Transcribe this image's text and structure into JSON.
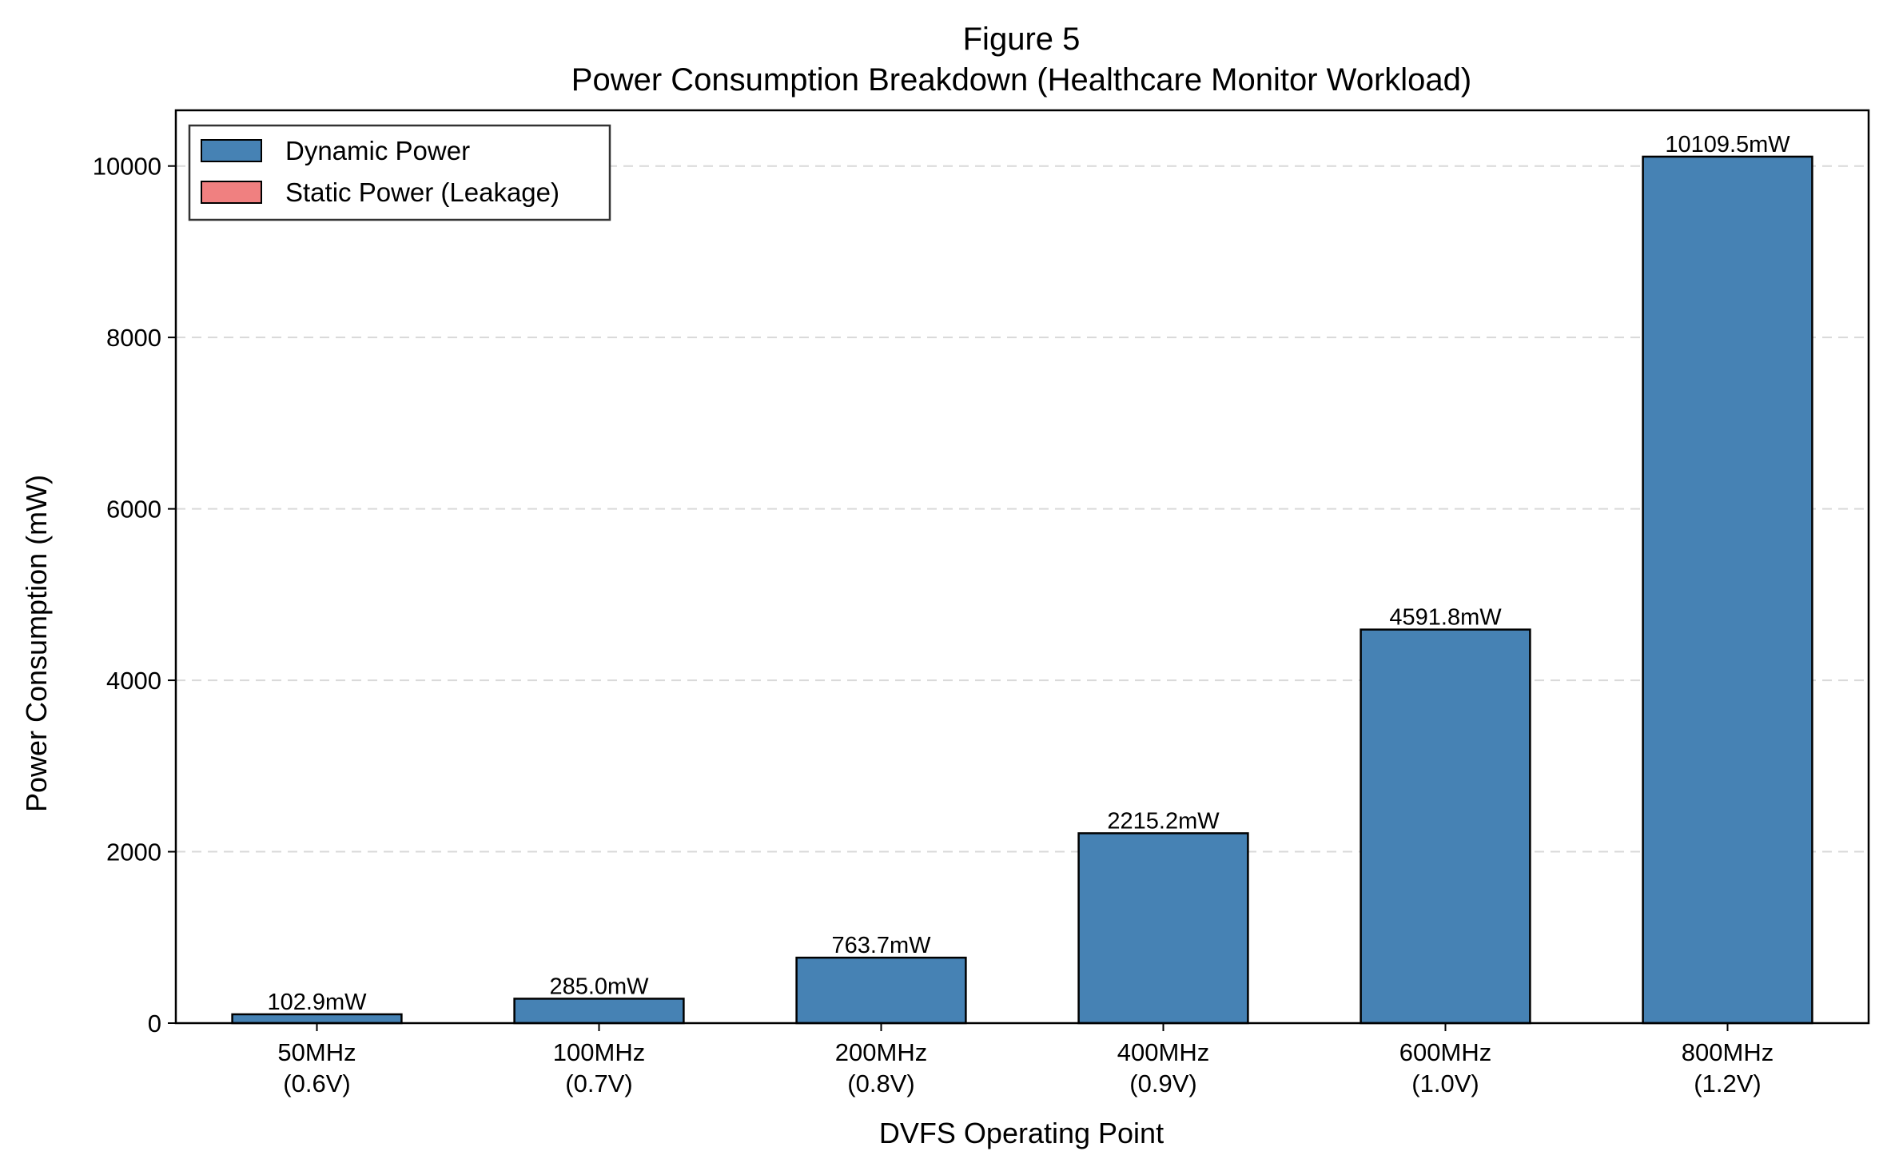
{
  "colors": {
    "dynamic": "#4682b4",
    "static": "#f08080",
    "edge": "#000000",
    "grid": "#d9d9d9"
  },
  "chart_data": {
    "type": "bar",
    "stacked": true,
    "title": "Figure 5",
    "subtitle": "Power Consumption Breakdown (Healthcare Monitor Workload)",
    "xlabel": "DVFS Operating Point",
    "ylabel": "Power Consumption (mW)",
    "categories": [
      [
        "50MHz",
        "(0.6V)"
      ],
      [
        "100MHz",
        "(0.7V)"
      ],
      [
        "200MHz",
        "(0.8V)"
      ],
      [
        "400MHz",
        "(0.9V)"
      ],
      [
        "600MHz",
        "(1.0V)"
      ],
      [
        "800MHz",
        "(1.2V)"
      ]
    ],
    "series": [
      {
        "name": "Dynamic Power",
        "color": "#4682b4",
        "values": [
          102.9,
          285.0,
          763.7,
          2215.2,
          4591.8,
          10109.5
        ]
      },
      {
        "name": "Static Power (Leakage)",
        "color": "#f08080",
        "values": [
          0,
          0,
          0,
          0,
          0,
          0
        ]
      }
    ],
    "data_labels": [
      "102.9mW",
      "285.0mW",
      "763.7mW",
      "2215.2mW",
      "4591.8mW",
      "10109.5mW"
    ],
    "ylim": [
      0,
      10650
    ],
    "yticks": [
      0,
      2000,
      4000,
      6000,
      8000,
      10000
    ],
    "grid": "y-dashed",
    "legend_position": "upper-left"
  }
}
